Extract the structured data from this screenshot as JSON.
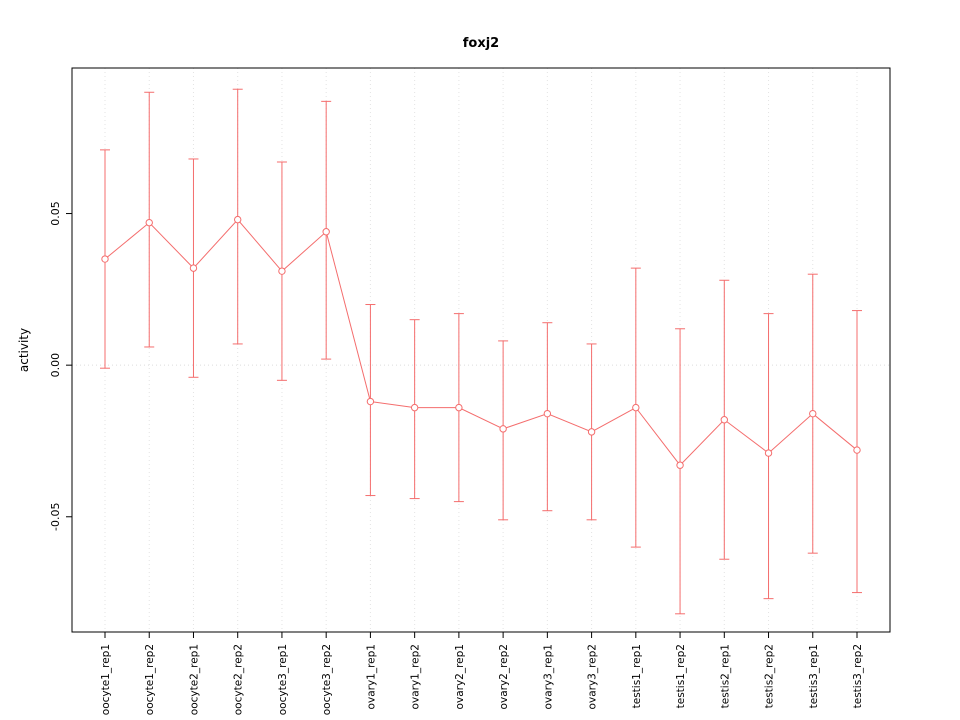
{
  "chart_data": {
    "type": "line",
    "title": "foxj2",
    "xlabel": "",
    "ylabel": "activity",
    "categories": [
      "oocyte1_rep1",
      "oocyte1_rep2",
      "oocyte2_rep1",
      "oocyte2_rep2",
      "oocyte3_rep1",
      "oocyte3_rep2",
      "ovary1_rep1",
      "ovary1_rep2",
      "ovary2_rep1",
      "ovary2_rep2",
      "ovary3_rep1",
      "ovary3_rep2",
      "testis1_rep1",
      "testis1_rep2",
      "testis2_rep1",
      "testis2_rep2",
      "testis3_rep1",
      "testis3_rep2"
    ],
    "values": [
      0.035,
      0.047,
      0.032,
      0.048,
      0.031,
      0.044,
      -0.012,
      -0.014,
      -0.014,
      -0.021,
      -0.016,
      -0.022,
      -0.014,
      -0.033,
      -0.018,
      -0.029,
      -0.016,
      -0.028
    ],
    "lower": [
      -0.001,
      0.006,
      -0.004,
      0.007,
      -0.005,
      0.002,
      -0.043,
      -0.044,
      -0.045,
      -0.051,
      -0.048,
      -0.051,
      -0.06,
      -0.082,
      -0.064,
      -0.077,
      -0.062,
      -0.075
    ],
    "upper": [
      0.071,
      0.09,
      0.068,
      0.091,
      0.067,
      0.087,
      0.02,
      0.015,
      0.017,
      0.008,
      0.014,
      0.007,
      0.032,
      0.012,
      0.028,
      0.017,
      0.03,
      0.018
    ],
    "ylim": [
      -0.088,
      0.098
    ],
    "yticks": [
      {
        "value": 0.05,
        "label": "0.05"
      },
      {
        "value": 0.0,
        "label": "0.00"
      },
      {
        "value": -0.05,
        "label": "-0.05"
      }
    ],
    "grid": "vertical-dotted-per-category, dotted-zero-line",
    "legend_position": "none",
    "colors": {
      "series": "#F46D6D",
      "grid": "#E3E3E3",
      "zero_line": "#DCDCDC",
      "axis": "#000000",
      "background": "#FFFFFF"
    }
  }
}
